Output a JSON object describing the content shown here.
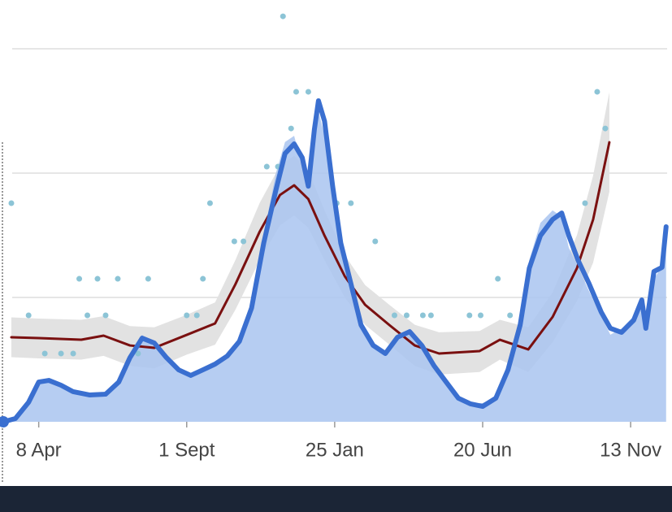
{
  "chart_data": {
    "type": "line",
    "xlim": [
      -35,
      620
    ],
    "ylim": [
      0,
      300
    ],
    "xticks": [
      {
        "value": 0,
        "label": "8 Apr"
      },
      {
        "value": 146,
        "label": "1 Sept"
      },
      {
        "value": 292,
        "label": "25 Jan"
      },
      {
        "value": 438,
        "label": "20 Jun"
      },
      {
        "value": 584,
        "label": "13 Nov"
      }
    ],
    "ygrid": [
      100,
      200,
      300
    ],
    "grid": true,
    "series": [
      {
        "style": "band",
        "color": "#e2e2e2",
        "x": [
          -27,
          0,
          42,
          64,
          90,
          114,
          146,
          174,
          194,
          218,
          238,
          252,
          266,
          282,
          302,
          322,
          346,
          371,
          395,
          435,
          455,
          483,
          507,
          531,
          547,
          563
        ],
        "upper": [
          84,
          83,
          82,
          85,
          77,
          76,
          86,
          96,
          130,
          176,
          206,
          214,
          202,
          170,
          134,
          110,
          94,
          78,
          72,
          73,
          82,
          76,
          104,
          150,
          198,
          265
        ],
        "lower": [
          52,
          51,
          50,
          53,
          45,
          43,
          54,
          62,
          90,
          130,
          158,
          166,
          156,
          130,
          100,
          78,
          62,
          45,
          38,
          40,
          50,
          40,
          64,
          97,
          128,
          185
        ]
      },
      {
        "style": "area",
        "color": "#a9c4f0",
        "x": [
          -35,
          -23,
          -10,
          0,
          10,
          22,
          34,
          50,
          66,
          79,
          90,
          102,
          114,
          126,
          138,
          150,
          162,
          174,
          186,
          198,
          210,
          222,
          234,
          243,
          252,
          260,
          266,
          272,
          276,
          282,
          290,
          298,
          308,
          318,
          330,
          342,
          354,
          366,
          378,
          390,
          402,
          414,
          426,
          438,
          451,
          463,
          475,
          484,
          495,
          507,
          516,
          523,
          532,
          543,
          555,
          564,
          575,
          587,
          595,
          599,
          607,
          615,
          619
        ],
        "values": [
          0,
          3,
          14,
          30,
          35,
          28,
          25,
          20,
          24,
          30,
          50,
          70,
          60,
          50,
          40,
          38,
          40,
          48,
          55,
          62,
          95,
          150,
          200,
          225,
          230,
          205,
          195,
          240,
          250,
          230,
          180,
          140,
          105,
          75,
          60,
          55,
          65,
          75,
          60,
          45,
          30,
          20,
          15,
          15,
          20,
          45,
          85,
          130,
          160,
          170,
          165,
          140,
          125,
          105,
          85,
          70,
          75,
          85,
          100,
          80,
          115,
          125,
          150
        ]
      },
      {
        "style": "scatter",
        "color": "#8cc4d6",
        "x": [
          -27,
          -10,
          6,
          22,
          34,
          40,
          48,
          58,
          66,
          78,
          98,
          108,
          146,
          156,
          162,
          169,
          193,
          202,
          225,
          236,
          241,
          249,
          254,
          266,
          294,
          308,
          332,
          351,
          363,
          379,
          387,
          425,
          436,
          453,
          465,
          539,
          551,
          559
        ],
        "values": [
          175.8,
          85.6,
          54.9,
          54.9,
          54.9,
          115,
          85.6,
          115,
          85.6,
          115,
          54.9,
          115,
          85.6,
          85.6,
          115,
          175.8,
          145.1,
          145.1,
          205.2,
          205.2,
          326.1,
          235.9,
          265.4,
          265.4,
          175.8,
          175.8,
          145.1,
          85.6,
          85.6,
          85.6,
          85.6,
          85.6,
          85.6,
          115,
          85.6,
          175.8,
          265.4,
          235.9
        ]
      },
      {
        "style": "line",
        "color": "#7a1010",
        "width": 3,
        "x": [
          -27,
          0,
          42,
          64,
          90,
          114,
          146,
          174,
          194,
          218,
          238,
          252,
          266,
          282,
          302,
          322,
          346,
          371,
          395,
          435,
          455,
          483,
          507,
          531,
          547,
          563
        ],
        "values": [
          68,
          67.3,
          66,
          69.3,
          61.4,
          59.5,
          69.9,
          79.1,
          110.5,
          152.9,
          182.4,
          190.2,
          179.1,
          149.7,
          117,
          94.1,
          77.8,
          61.4,
          54.9,
          56.9,
          66,
          58.2,
          84.3,
          123.5,
          162.7,
          224.8
        ]
      },
      {
        "style": "line",
        "color": "#3a6fd0",
        "width": 6,
        "x": [
          -35,
          -23,
          -10,
          0,
          10,
          22,
          34,
          50,
          66,
          79,
          90,
          102,
          114,
          126,
          138,
          150,
          162,
          174,
          186,
          198,
          210,
          222,
          234,
          243,
          252,
          260,
          266,
          272,
          276,
          282,
          290,
          298,
          308,
          318,
          330,
          342,
          354,
          366,
          378,
          390,
          402,
          414,
          426,
          438,
          451,
          463,
          475,
          484,
          495,
          507,
          516,
          523,
          532,
          543,
          555,
          564,
          575,
          587,
          595,
          599,
          607,
          615,
          619
        ],
        "values": [
          0,
          2.6,
          15.7,
          32,
          33.3,
          29.4,
          24.2,
          21.6,
          22.2,
          32,
          51.6,
          67.3,
          63.4,
          51.6,
          41.8,
          37.3,
          41.8,
          46.4,
          52.9,
          64.7,
          91.5,
          143.8,
          186.3,
          215.7,
          223.5,
          212.4,
          189.5,
          235.3,
          258.2,
          241.8,
          189.5,
          143.8,
          111.1,
          77.8,
          61.4,
          54.9,
          68,
          72.5,
          61.4,
          45.1,
          32,
          19,
          14.4,
          12.4,
          19,
          41.8,
          77.8,
          123.5,
          149.7,
          162.7,
          167.9,
          149.7,
          130.1,
          111.1,
          88.2,
          75.2,
          71.9,
          81.7,
          98,
          75.2,
          120.9,
          124.2,
          156.9
        ]
      }
    ]
  }
}
